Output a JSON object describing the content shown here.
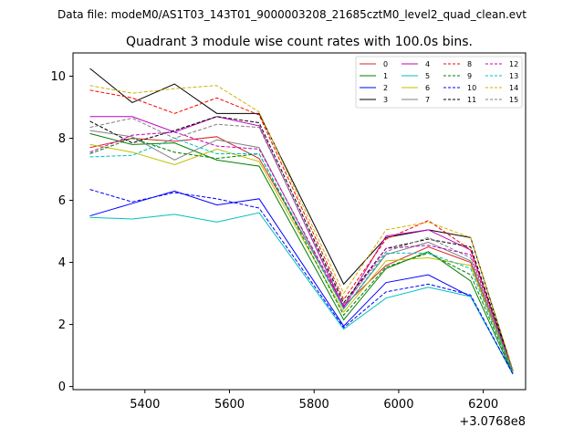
{
  "chart_data": {
    "type": "line",
    "suptitle": "Data file: modeM0/AS1T03_143T01_9000003208_21685cztM0_level2_quad_clean.evt",
    "title": "Quadrant 3 module wise count rates with 100.0s bins.",
    "xlabel": "",
    "ylabel": "",
    "x_offset_label": "+3.0768e8",
    "xlim": [
      5230,
      6300
    ],
    "ylim": [
      -0.1,
      10.75
    ],
    "xticks": [
      "5400",
      "5600",
      "5800",
      "6000",
      "6200"
    ],
    "yticks": [
      "0",
      "2",
      "4",
      "6",
      "8",
      "10"
    ],
    "grid": false,
    "legend_position": "top-right",
    "x": [
      5270,
      5370,
      5470,
      5570,
      5670,
      5870,
      5970,
      6070,
      6170,
      6270
    ],
    "series": [
      {
        "name": "0",
        "color": "#d62728",
        "dash": "solid",
        "values": [
          7.7,
          8.0,
          7.9,
          8.05,
          7.35,
          2.6,
          3.9,
          4.5,
          4.0,
          0.45
        ]
      },
      {
        "name": "1",
        "color": "#008000",
        "dash": "solid",
        "values": [
          8.15,
          7.8,
          7.85,
          7.3,
          7.1,
          2.15,
          3.8,
          4.35,
          3.4,
          0.4
        ]
      },
      {
        "name": "2",
        "color": "#0000ff",
        "dash": "solid",
        "values": [
          5.5,
          5.9,
          6.3,
          5.85,
          6.05,
          1.95,
          3.35,
          3.6,
          2.9,
          0.4
        ]
      },
      {
        "name": "3",
        "color": "#000000",
        "dash": "solid",
        "values": [
          10.25,
          9.15,
          9.75,
          8.8,
          8.8,
          3.3,
          4.8,
          5.05,
          4.8,
          0.5
        ]
      },
      {
        "name": "4",
        "color": "#c000c0",
        "dash": "solid",
        "values": [
          8.7,
          8.7,
          8.2,
          8.7,
          8.4,
          2.55,
          4.85,
          5.05,
          4.4,
          0.5
        ]
      },
      {
        "name": "5",
        "color": "#00bfbf",
        "dash": "solid",
        "values": [
          5.45,
          5.4,
          5.55,
          5.3,
          5.6,
          1.85,
          2.85,
          3.2,
          2.9,
          0.4
        ]
      },
      {
        "name": "6",
        "color": "#bfbf00",
        "dash": "solid",
        "values": [
          7.8,
          7.55,
          7.15,
          7.65,
          7.25,
          2.4,
          4.05,
          4.15,
          3.9,
          0.45
        ]
      },
      {
        "name": "7",
        "color": "#808080",
        "dash": "solid",
        "values": [
          8.25,
          8.05,
          7.3,
          7.95,
          7.7,
          2.5,
          4.25,
          4.65,
          4.05,
          0.5
        ]
      },
      {
        "name": "8",
        "color": "#ff0000",
        "dash": "dashed",
        "values": [
          9.55,
          9.3,
          8.8,
          9.3,
          8.75,
          2.8,
          4.75,
          5.35,
          4.4,
          0.5
        ]
      },
      {
        "name": "9",
        "color": "#008000",
        "dash": "dashed",
        "values": [
          7.5,
          8.0,
          7.55,
          7.35,
          7.5,
          2.3,
          3.85,
          4.3,
          3.6,
          0.45
        ]
      },
      {
        "name": "10",
        "color": "#0000ff",
        "dash": "dashed",
        "values": [
          6.35,
          5.95,
          6.25,
          6.05,
          5.75,
          1.9,
          3.05,
          3.3,
          2.95,
          0.4
        ]
      },
      {
        "name": "11",
        "color": "#000000",
        "dash": "dashed",
        "values": [
          8.55,
          7.85,
          8.25,
          8.7,
          8.5,
          2.7,
          4.45,
          4.75,
          4.5,
          0.5
        ]
      },
      {
        "name": "12",
        "color": "#c000c0",
        "dash": "dashed",
        "values": [
          7.55,
          8.1,
          8.2,
          7.75,
          7.65,
          2.6,
          4.45,
          4.55,
          4.25,
          0.5
        ]
      },
      {
        "name": "13",
        "color": "#00bfbf",
        "dash": "dashed",
        "values": [
          7.4,
          7.45,
          8.0,
          7.5,
          7.5,
          2.5,
          4.3,
          4.3,
          3.8,
          0.45
        ]
      },
      {
        "name": "14",
        "color": "#d4b000",
        "dash": "dashed",
        "values": [
          9.7,
          9.45,
          9.6,
          9.7,
          8.85,
          3.0,
          5.05,
          5.3,
          4.8,
          0.55
        ]
      },
      {
        "name": "15",
        "color": "#808080",
        "dash": "dashed",
        "values": [
          8.35,
          8.65,
          8.0,
          8.45,
          8.35,
          2.65,
          4.35,
          4.8,
          4.15,
          0.5
        ]
      }
    ]
  }
}
